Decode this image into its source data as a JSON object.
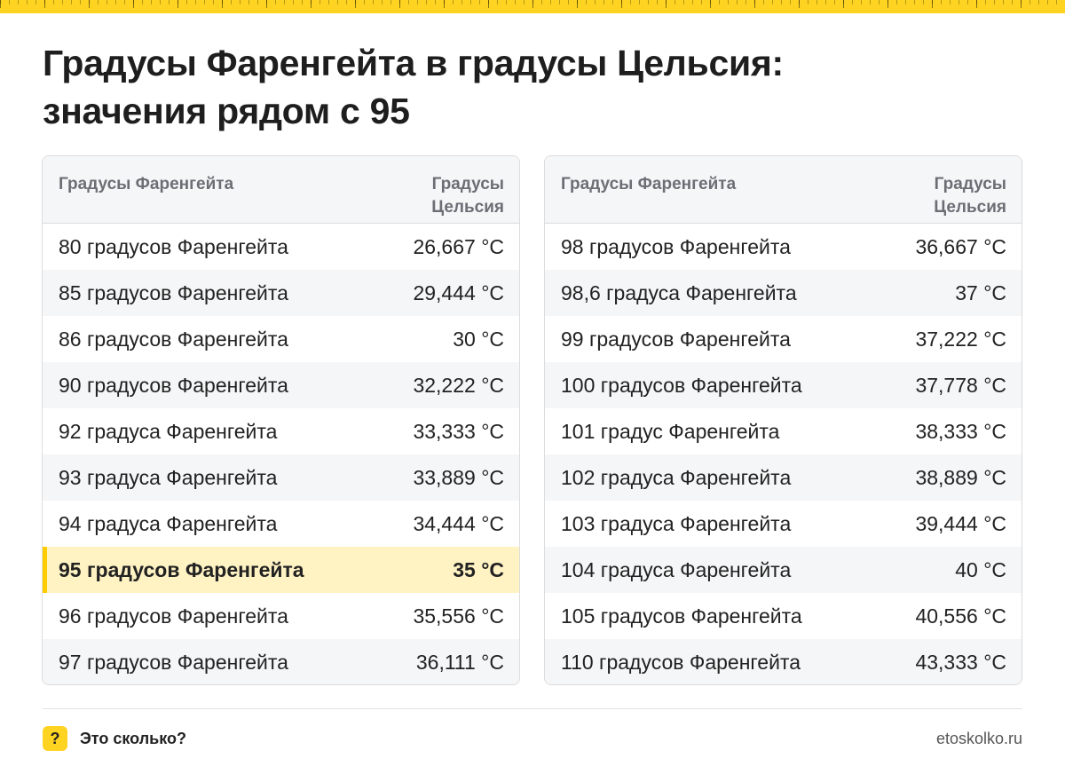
{
  "title": "Градусы Фаренгейта в градусы Цельсия: значения рядом с 95",
  "accent_color": "#ffd321",
  "highlight_color": "#fff3c4",
  "tables": [
    {
      "headers": {
        "f": "Градусы Фаренгейта",
        "c": "Градусы Цельсия"
      },
      "rows": [
        {
          "f": "80 градусов Фаренгейта",
          "c": "26,667 °C"
        },
        {
          "f": "85 градусов Фаренгейта",
          "c": "29,444 °C"
        },
        {
          "f": "86 градусов Фаренгейта",
          "c": "30 °C"
        },
        {
          "f": "90 градусов Фаренгейта",
          "c": "32,222 °C"
        },
        {
          "f": "92 градуса Фаренгейта",
          "c": "33,333 °C"
        },
        {
          "f": "93 градуса Фаренгейта",
          "c": "33,889 °C"
        },
        {
          "f": "94 градуса Фаренгейта",
          "c": "34,444 °C"
        },
        {
          "f": "95 градусов Фаренгейта",
          "c": "35 °C",
          "highlight": true
        },
        {
          "f": "96 градусов Фаренгейта",
          "c": "35,556 °C"
        },
        {
          "f": "97 градусов Фаренгейта",
          "c": "36,111 °C"
        }
      ]
    },
    {
      "headers": {
        "f": "Градусы Фаренгейта",
        "c": "Градусы Цельсия"
      },
      "rows": [
        {
          "f": "98 градусов Фаренгейта",
          "c": "36,667 °C"
        },
        {
          "f": "98,6 градуса Фаренгейта",
          "c": "37 °C"
        },
        {
          "f": "99 градусов Фаренгейта",
          "c": "37,222 °C"
        },
        {
          "f": "100 градусов Фаренгейта",
          "c": "37,778 °C"
        },
        {
          "f": "101 градус Фаренгейта",
          "c": "38,333 °C"
        },
        {
          "f": "102 градуса Фаренгейта",
          "c": "38,889 °C"
        },
        {
          "f": "103 градуса Фаренгейта",
          "c": "39,444 °C"
        },
        {
          "f": "104 градуса Фаренгейта",
          "c": "40 °C"
        },
        {
          "f": "105 градусов Фаренгейта",
          "c": "40,556 °C"
        },
        {
          "f": "110 градусов Фаренгейта",
          "c": "43,333 °C"
        }
      ]
    }
  ],
  "footer": {
    "badge": "?",
    "label": "Это сколько?",
    "site": "etoskolko.ru"
  }
}
